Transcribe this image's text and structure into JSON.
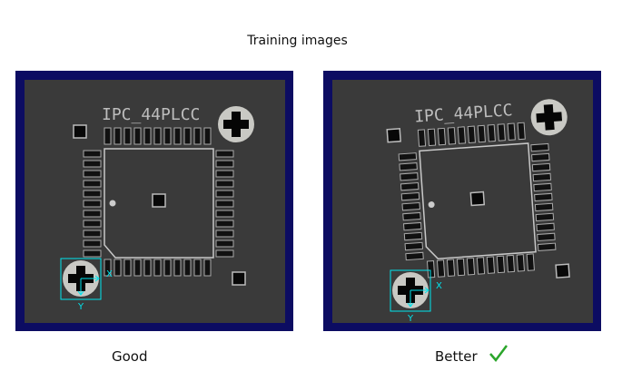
{
  "title": "Training images",
  "panels": [
    {
      "caption": "Good",
      "chip_label": "IPC_44PLCC",
      "axis_x": "X",
      "axis_y": "Y",
      "rotation_deg": 0
    },
    {
      "caption": "Better",
      "chip_label": "IPC_44PLCC",
      "axis_x": "X",
      "axis_y": "Y",
      "rotation_deg": -4,
      "check_icon": "checkmark-icon"
    }
  ],
  "colors": {
    "frame": "#0c0c62",
    "board": "#3a3a3a",
    "marker": "#00e5ee",
    "check": "#2aa52a"
  }
}
